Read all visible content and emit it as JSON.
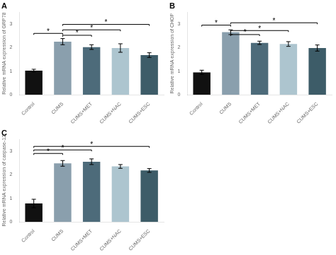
{
  "chart_data": [
    {
      "type": "bar",
      "title": "A",
      "ylabel": "Relative mRNA expression of GRP78",
      "categories": [
        "Control",
        "CUMS",
        "CUMS+MET",
        "CUMS+NAC",
        "CUMS+ESC"
      ],
      "values": [
        1.02,
        2.25,
        2.02,
        1.98,
        1.68
      ],
      "errors": [
        0.06,
        0.13,
        0.1,
        0.18,
        0.1
      ],
      "colors": [
        "#111111",
        "#8a9fad",
        "#4d6b7a",
        "#adc5cf",
        "#3d5c68"
      ],
      "ylim": [
        0,
        3.5
      ],
      "yticks": [
        0,
        1,
        2,
        3
      ],
      "grid": false,
      "annotations": [
        {
          "x1": "Control",
          "x2": "CUMS",
          "y": 2.6,
          "label": "*"
        },
        {
          "x1": "CUMS",
          "x2": "CUMS+MET",
          "y": 2.52,
          "label": "*"
        },
        {
          "x1": "CUMS",
          "x2": "CUMS+NAC",
          "y": 2.75,
          "label": "*"
        },
        {
          "x1": "CUMS",
          "x2": "CUMS+ESC",
          "y": 2.98,
          "label": "*"
        }
      ]
    },
    {
      "type": "bar",
      "title": "B",
      "ylabel": "Relative mRNA expression of CHOP",
      "categories": [
        "Control",
        "CUMS",
        "CUMS+MET",
        "CUMS+NAC",
        "CUMS+ESC"
      ],
      "values": [
        0.95,
        2.65,
        2.2,
        2.15,
        1.98
      ],
      "errors": [
        0.09,
        0.1,
        0.07,
        0.1,
        0.13
      ],
      "colors": [
        "#111111",
        "#8a9fad",
        "#4d6b7a",
        "#adc5cf",
        "#3d5c68"
      ],
      "ylim": [
        0,
        3.5
      ],
      "yticks": [
        0,
        1,
        2,
        3
      ],
      "grid": false,
      "annotations": [
        {
          "x1": "Control",
          "x2": "CUMS",
          "y": 2.95,
          "label": "*"
        },
        {
          "x1": "CUMS",
          "x2": "CUMS+MET",
          "y": 2.55,
          "label": "*"
        },
        {
          "x1": "CUMS",
          "x2": "CUMS+NAC",
          "y": 2.72,
          "label": "*"
        },
        {
          "x1": "CUMS",
          "x2": "CUMS+ESC",
          "y": 3.05,
          "label": "*"
        }
      ]
    },
    {
      "type": "bar",
      "title": "C",
      "ylabel": "Relative mRNA expression of caspase-12",
      "categories": [
        "Control",
        "CUMS",
        "CUMS+MET",
        "CUMS+NAC",
        "CUMS+ESC"
      ],
      "values": [
        0.78,
        2.48,
        2.55,
        2.35,
        2.18
      ],
      "errors": [
        0.18,
        0.12,
        0.12,
        0.08,
        0.08
      ],
      "colors": [
        "#111111",
        "#8a9fad",
        "#4d6b7a",
        "#adc5cf",
        "#3d5c68"
      ],
      "ylim": [
        0,
        3.5
      ],
      "yticks": [
        0,
        1,
        2,
        3
      ],
      "grid": false,
      "annotations": [
        {
          "x1": "Control",
          "x2": "CUMS",
          "y": 2.9,
          "label": "*"
        },
        {
          "x1": "Control",
          "x2": "CUMS+MET",
          "y": 3.05,
          "label": "*"
        },
        {
          "x1": "Control",
          "x2": "CUMS+ESC",
          "y": 3.2,
          "label": "*"
        }
      ]
    }
  ]
}
